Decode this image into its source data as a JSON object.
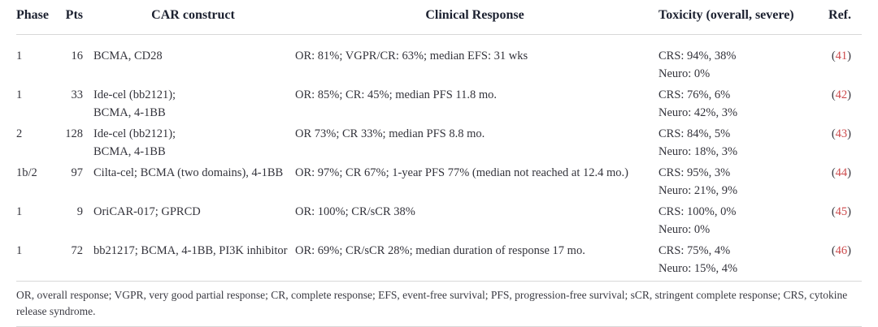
{
  "table": {
    "columns": {
      "phase": "Phase",
      "pts": "Pts",
      "construct": "CAR construct",
      "response": "Clinical Response",
      "toxicity": "Toxicity (overall, severe)",
      "ref": "Ref."
    },
    "ref_paren_open": "(",
    "ref_paren_close": ")",
    "rows": [
      {
        "phase": "1",
        "pts": "16",
        "construct_lines": {
          "0": "BCMA, CD28",
          "1": ""
        },
        "response": "OR: 81%; VGPR/CR: 63%; median EFS: 31 wks",
        "toxicity_lines": {
          "0": "CRS: 94%, 38%",
          "1": "Neuro: 0%"
        },
        "ref": "41"
      },
      {
        "phase": "1",
        "pts": "33",
        "construct_lines": {
          "0": "Ide-cel (bb2121);",
          "1": "BCMA, 4-1BB"
        },
        "response": "OR: 85%; CR: 45%; median PFS 11.8 mo.",
        "toxicity_lines": {
          "0": "CRS: 76%, 6%",
          "1": "Neuro: 42%, 3%"
        },
        "ref": "42"
      },
      {
        "phase": "2",
        "pts": "128",
        "construct_lines": {
          "0": "Ide-cel (bb2121);",
          "1": "BCMA, 4-1BB"
        },
        "response": "OR 73%; CR 33%; median PFS 8.8 mo.",
        "toxicity_lines": {
          "0": "CRS: 84%, 5%",
          "1": "Neuro: 18%, 3%"
        },
        "ref": "43"
      },
      {
        "phase": "1b/2",
        "pts": "97",
        "construct_lines": {
          "0": "Cilta-cel; BCMA (two domains), 4-1BB",
          "1": ""
        },
        "response": "OR: 97%; CR 67%; 1-year PFS 77% (median not reached at 12.4 mo.)",
        "toxicity_lines": {
          "0": "CRS: 95%, 3%",
          "1": "Neuro: 21%, 9%"
        },
        "ref": "44"
      },
      {
        "phase": "1",
        "pts": "9",
        "construct_lines": {
          "0": "OriCAR-017; GPRCD",
          "1": ""
        },
        "response": "OR: 100%; CR/sCR 38%",
        "toxicity_lines": {
          "0": "CRS: 100%, 0%",
          "1": "Neuro: 0%"
        },
        "ref": "45"
      },
      {
        "phase": "1",
        "pts": "72",
        "construct_lines": {
          "0": "bb21217; BCMA, 4-1BB, PI3K inhibitor",
          "1": ""
        },
        "response": "OR: 69%; CR/sCR 28%; median duration of response 17 mo.",
        "toxicity_lines": {
          "0": "CRS: 75%, 4%",
          "1": "Neuro: 15%, 4%"
        },
        "ref": "46"
      }
    ],
    "footnote": "OR, overall response; VGPR, very good partial response; CR, complete response; EFS, event-free survival; PFS, progression-free survival; sCR, stringent complete response; CRS, cytokine release syndrome.",
    "colors": {
      "ref_red": "#cd4a4c",
      "rule_gray": "#d8d8d8",
      "header_text": "#1c2130",
      "body_text": "#33333b"
    }
  }
}
